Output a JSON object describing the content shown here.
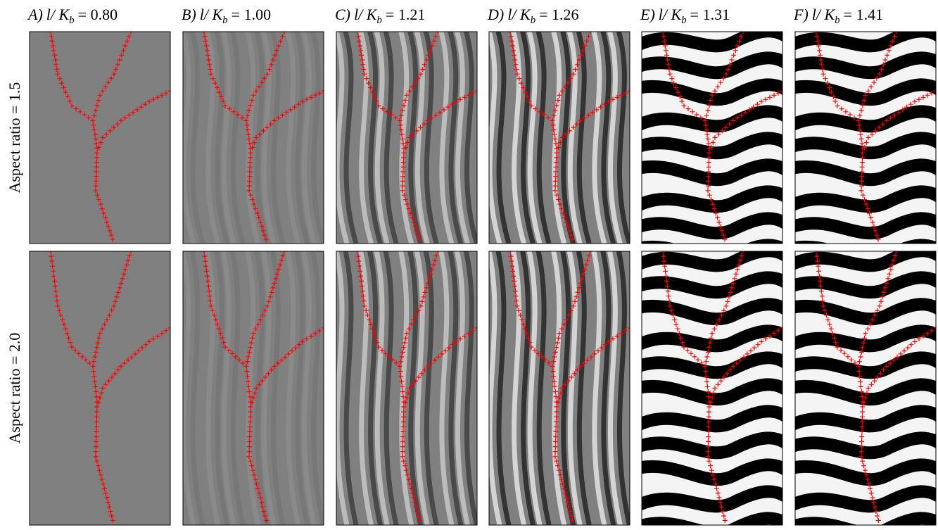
{
  "columns": [
    {
      "label": [
        "A)",
        "l/ K",
        "b",
        "= 0.80"
      ]
    },
    {
      "label": [
        "B)",
        "l/ K",
        "b",
        "= 1.00"
      ]
    },
    {
      "label": [
        "C)",
        "l/ K",
        "b",
        "= 1.21"
      ]
    },
    {
      "label": [
        "D)",
        "l/ K",
        "b",
        "= 1.26"
      ]
    },
    {
      "label": [
        "E)",
        "l/ K",
        "b",
        "= 1.31"
      ]
    },
    {
      "label": [
        "F)",
        "l/ K",
        "b",
        "= 1.41"
      ]
    }
  ],
  "rows": [
    {
      "label": "Aspect ratio = 1.5"
    },
    {
      "label": "Aspect ratio = 2.0"
    }
  ]
}
